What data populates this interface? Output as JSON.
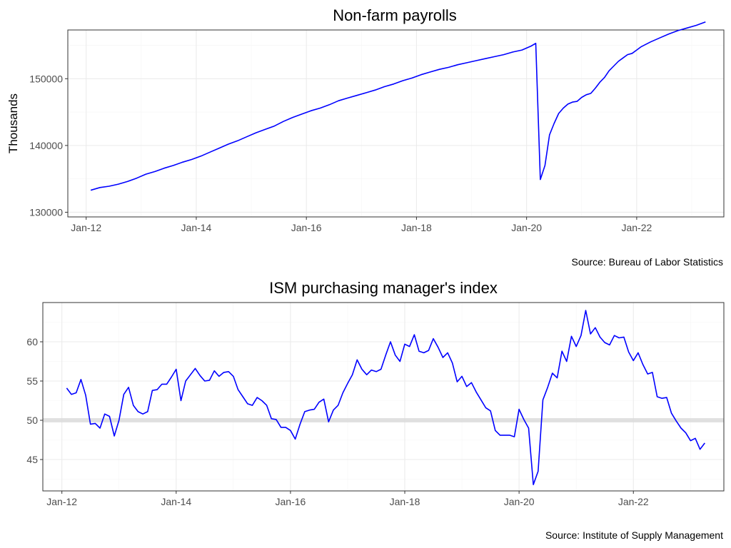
{
  "colors": {
    "line": "#0000ff",
    "panel_border": "#333333",
    "grid_major": "#ebebeb",
    "grid_minor": "#f5f5f5",
    "ref_line": "#d9d9d9"
  },
  "chart_data": [
    {
      "type": "line",
      "title": "Non-farm payrolls",
      "ylabel": "Thousands",
      "xlabel": "",
      "caption": "Source: Bureau of Labor Statistics",
      "x_ticks": [
        "Jan-12",
        "Jan-14",
        "Jan-16",
        "Jan-18",
        "Jan-20",
        "Jan-22"
      ],
      "y_ticks": [
        "130000",
        "140000",
        "150000"
      ],
      "xlim": [
        "2011-09",
        "2023-08"
      ],
      "ylim": [
        129300,
        157300
      ],
      "grid": true,
      "series": [
        {
          "x": [
            "2012-02",
            "2012-04",
            "2012-06",
            "2012-08",
            "2012-10",
            "2012-12",
            "2013-02",
            "2013-04",
            "2013-06",
            "2013-08",
            "2013-10",
            "2013-12",
            "2014-02",
            "2014-04",
            "2014-06",
            "2014-08",
            "2014-10",
            "2014-12",
            "2015-02",
            "2015-04",
            "2015-06",
            "2015-08",
            "2015-10",
            "2015-12",
            "2016-02",
            "2016-04",
            "2016-06",
            "2016-08",
            "2016-10",
            "2016-12",
            "2017-02",
            "2017-04",
            "2017-06",
            "2017-08",
            "2017-10",
            "2017-12",
            "2018-02",
            "2018-04",
            "2018-06",
            "2018-08",
            "2018-10",
            "2018-12",
            "2019-02",
            "2019-04",
            "2019-06",
            "2019-08",
            "2019-10",
            "2019-12",
            "2020-02",
            "2020-03",
            "2020-04",
            "2020-05",
            "2020-06",
            "2020-07",
            "2020-08",
            "2020-09",
            "2020-10",
            "2020-11",
            "2020-12",
            "2021-01",
            "2021-02",
            "2021-03",
            "2021-04",
            "2021-05",
            "2021-06",
            "2021-07",
            "2021-08",
            "2021-09",
            "2021-10",
            "2021-11",
            "2021-12",
            "2022-01",
            "2022-02",
            "2022-04",
            "2022-06",
            "2022-08",
            "2022-10",
            "2022-12",
            "2023-02",
            "2023-04"
          ],
          "values": [
            133300,
            133700,
            133900,
            134200,
            134600,
            135100,
            135700,
            136100,
            136600,
            137000,
            137500,
            137900,
            138400,
            139000,
            139600,
            140200,
            140700,
            141300,
            141900,
            142400,
            142900,
            143600,
            144200,
            144700,
            145200,
            145600,
            146100,
            146700,
            147100,
            147500,
            147900,
            148300,
            148800,
            149200,
            149700,
            150100,
            150600,
            151000,
            151400,
            151700,
            152100,
            152400,
            152700,
            153000,
            153300,
            153600,
            154000,
            154300,
            154900,
            155300,
            134900,
            137000,
            141600,
            143300,
            144800,
            145600,
            146200,
            146500,
            146600,
            147200,
            147600,
            147800,
            148600,
            149500,
            150200,
            151200,
            151900,
            152600,
            153100,
            153600,
            153800,
            154300,
            154800,
            155500,
            156100,
            156700,
            157200,
            157600,
            158000,
            158500
          ]
        }
      ]
    },
    {
      "type": "line",
      "title": "ISM purchasing manager's index",
      "ylabel": "",
      "xlabel": "",
      "caption": "Source: Institute of Supply Management",
      "x_ticks": [
        "Jan-12",
        "Jan-14",
        "Jan-16",
        "Jan-18",
        "Jan-20",
        "Jan-22"
      ],
      "y_ticks": [
        "45",
        "50",
        "55",
        "60"
      ],
      "xlim": [
        "2011-09",
        "2023-08"
      ],
      "ylim": [
        41,
        65
      ],
      "reference_line": 50,
      "grid": true,
      "series": [
        {
          "x": [
            "2012-02",
            "2012-03",
            "2012-04",
            "2012-05",
            "2012-06",
            "2012-07",
            "2012-08",
            "2012-09",
            "2012-10",
            "2012-11",
            "2012-12",
            "2013-01",
            "2013-02",
            "2013-03",
            "2013-04",
            "2013-05",
            "2013-06",
            "2013-07",
            "2013-08",
            "2013-09",
            "2013-10",
            "2013-11",
            "2013-12",
            "2014-01",
            "2014-02",
            "2014-03",
            "2014-04",
            "2014-05",
            "2014-06",
            "2014-07",
            "2014-08",
            "2014-09",
            "2014-10",
            "2014-11",
            "2014-12",
            "2015-01",
            "2015-02",
            "2015-03",
            "2015-04",
            "2015-05",
            "2015-06",
            "2015-07",
            "2015-08",
            "2015-09",
            "2015-10",
            "2015-11",
            "2015-12",
            "2016-01",
            "2016-02",
            "2016-03",
            "2016-04",
            "2016-05",
            "2016-06",
            "2016-07",
            "2016-08",
            "2016-09",
            "2016-10",
            "2016-11",
            "2016-12",
            "2017-01",
            "2017-02",
            "2017-03",
            "2017-04",
            "2017-05",
            "2017-06",
            "2017-07",
            "2017-08",
            "2017-09",
            "2017-10",
            "2017-11",
            "2017-12",
            "2018-01",
            "2018-02",
            "2018-03",
            "2018-04",
            "2018-05",
            "2018-06",
            "2018-07",
            "2018-08",
            "2018-09",
            "2018-10",
            "2018-11",
            "2018-12",
            "2019-01",
            "2019-02",
            "2019-03",
            "2019-04",
            "2019-05",
            "2019-06",
            "2019-07",
            "2019-08",
            "2019-09",
            "2019-10",
            "2019-11",
            "2019-12",
            "2020-01",
            "2020-02",
            "2020-03",
            "2020-04",
            "2020-05",
            "2020-06",
            "2020-07",
            "2020-08",
            "2020-09",
            "2020-10",
            "2020-11",
            "2020-12",
            "2021-01",
            "2021-02",
            "2021-03",
            "2021-04",
            "2021-05",
            "2021-06",
            "2021-07",
            "2021-08",
            "2021-09",
            "2021-10",
            "2021-11",
            "2021-12",
            "2022-01",
            "2022-02",
            "2022-03",
            "2022-04",
            "2022-05",
            "2022-06",
            "2022-07",
            "2022-08",
            "2022-09",
            "2022-10",
            "2022-11",
            "2022-12",
            "2023-01",
            "2023-02",
            "2023-03",
            "2023-04"
          ],
          "values": [
            54.1,
            53.3,
            53.5,
            55.2,
            53.2,
            49.5,
            49.6,
            49.0,
            50.8,
            50.5,
            48.0,
            50.0,
            53.3,
            54.2,
            51.9,
            51.1,
            50.8,
            51.1,
            53.8,
            53.9,
            54.6,
            54.6,
            55.5,
            56.5,
            52.5,
            55.0,
            55.8,
            56.6,
            55.7,
            55.0,
            55.1,
            56.3,
            55.6,
            56.1,
            56.2,
            55.6,
            53.9,
            53.0,
            52.1,
            51.9,
            52.9,
            52.5,
            51.9,
            50.2,
            50.1,
            49.1,
            49.1,
            48.7,
            47.6,
            49.5,
            51.1,
            51.3,
            51.4,
            52.3,
            52.7,
            49.8,
            51.3,
            51.9,
            53.5,
            54.7,
            55.8,
            57.7,
            56.5,
            55.8,
            56.4,
            56.2,
            56.5,
            58.3,
            60.0,
            58.3,
            57.5,
            59.7,
            59.4,
            60.9,
            58.8,
            58.6,
            58.9,
            60.4,
            59.3,
            58.0,
            58.6,
            57.3,
            54.9,
            55.6,
            54.3,
            54.8,
            53.6,
            52.6,
            51.6,
            51.2,
            48.7,
            48.1,
            48.1,
            48.1,
            47.9,
            51.4,
            50.1,
            49.0,
            41.8,
            43.5,
            52.6,
            54.2,
            56.0,
            55.4,
            58.8,
            57.5,
            60.7,
            59.4,
            60.8,
            64.0,
            61.0,
            61.8,
            60.6,
            59.9,
            59.6,
            60.8,
            60.5,
            60.6,
            58.7,
            57.6,
            58.6,
            57.1,
            55.9,
            56.1,
            53.0,
            52.8,
            52.9,
            50.9,
            49.9,
            49.0,
            48.4,
            47.4,
            47.7,
            46.3,
            47.1
          ]
        }
      ]
    }
  ]
}
